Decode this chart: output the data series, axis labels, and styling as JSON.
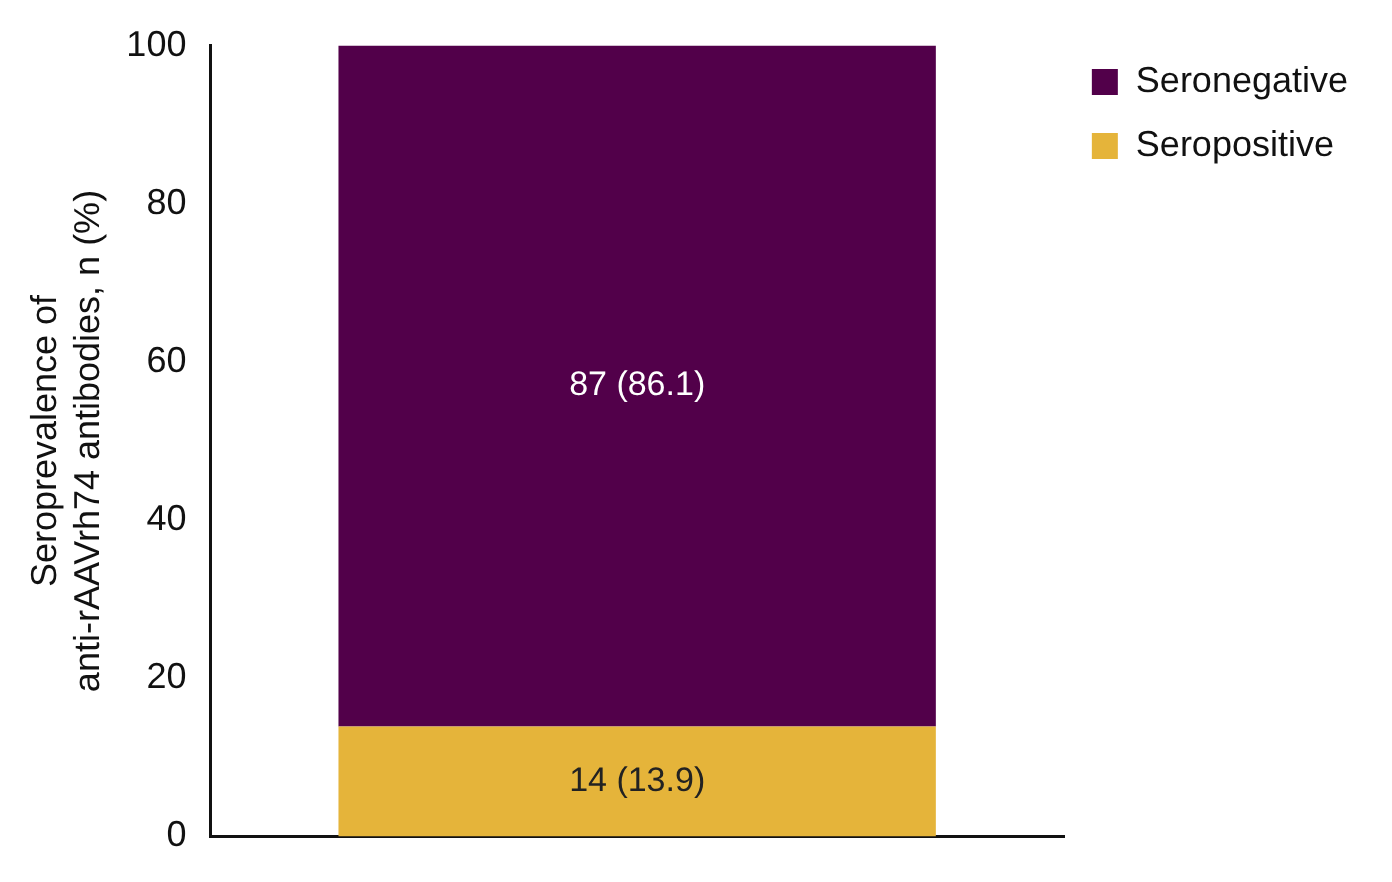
{
  "chart_data": {
    "type": "bar",
    "stacked": true,
    "categories": [
      null
    ],
    "ylabel": "Seroprevalence of\nanti-rAAVrh74 antibodies, n (%)",
    "series": [
      {
        "name": "Seropositive",
        "color": "#e5b43a",
        "values": [
          13.9
        ],
        "value_labels": [
          "14 (13.9)"
        ]
      },
      {
        "name": "Seronegative",
        "color": "#52004a",
        "values": [
          86.1
        ],
        "value_labels": [
          "87 (86.1)"
        ]
      }
    ],
    "ylim": [
      0,
      100
    ],
    "yticks": [
      0,
      20,
      40,
      60,
      80,
      100
    ],
    "grid": false,
    "legend": "top right"
  }
}
